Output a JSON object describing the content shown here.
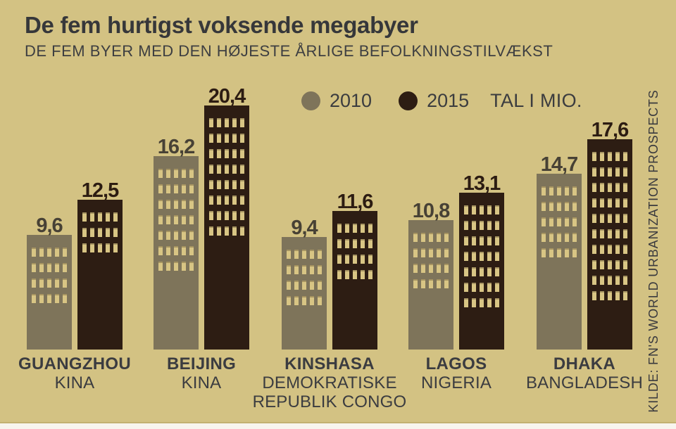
{
  "header": {
    "title": "De fem hurtigst voksende megabyer",
    "subtitle": "DE FEM BYER MED DEN HØJESTE ÅRLIGE BEFOLKNINGSTILVÆKST"
  },
  "legend": {
    "items": [
      {
        "label": "2010"
      },
      {
        "label": "2015"
      }
    ],
    "note": "TAL I MIO."
  },
  "source": "KILDE: FN'S WORLD URBANIZATION PROSPECTS",
  "colors": {
    "background": "#d3c283",
    "bar_2010": "#7e745a",
    "bar_2015": "#2d1d13",
    "window": "#d8c584",
    "text_dark": "#3b3c40",
    "footer_strip": "#f8f5ee"
  },
  "chart_data": {
    "type": "bar",
    "title": "De fem hurtigst voksende megabyer",
    "subtitle": "DE FEM BYER MED DEN HØJESTE ÅRLIGE BEFOLKNINGSTILVÆKST",
    "unit_note": "TAL I MIO.",
    "legend_position": "top",
    "ymin": 0,
    "categories": [
      {
        "city": "GUANGZHOU",
        "country_lines": [
          "KINA"
        ]
      },
      {
        "city": "BEIJING",
        "country_lines": [
          "KINA"
        ]
      },
      {
        "city": "KINSHASA",
        "country_lines": [
          "DEMOKRATISKE",
          "REPUBLIK CONGO"
        ]
      },
      {
        "city": "LAGOS",
        "country_lines": [
          "NIGERIA"
        ]
      },
      {
        "city": "DHAKA",
        "country_lines": [
          "BANGLADESH"
        ]
      }
    ],
    "series": [
      {
        "name": "2010",
        "color": "#7e745a",
        "label_color": "#474135",
        "values": [
          9.6,
          16.2,
          9.4,
          10.8,
          14.7
        ],
        "value_labels": [
          "9,6",
          "16,2",
          "9,4",
          "10,8",
          "14,7"
        ],
        "window_rows": [
          4,
          7,
          4,
          4,
          5
        ]
      },
      {
        "name": "2015",
        "color": "#2d1d13",
        "label_color": "#2c1c12",
        "values": [
          12.5,
          20.4,
          11.6,
          13.1,
          17.6
        ],
        "value_labels": [
          "12,5",
          "20,4",
          "11,6",
          "13,1",
          "17,6"
        ],
        "window_rows": [
          3,
          8,
          4,
          7,
          10
        ]
      }
    ]
  }
}
